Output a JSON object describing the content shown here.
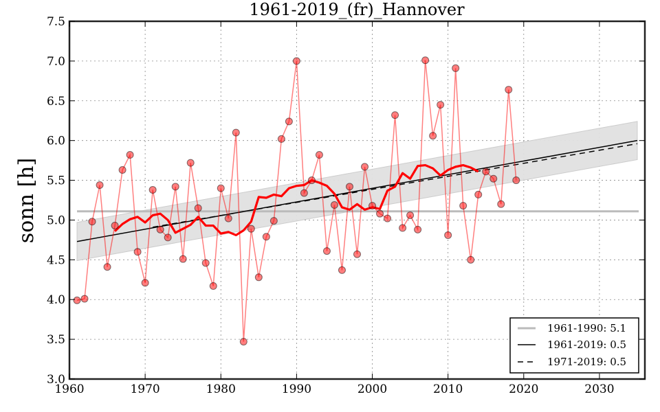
{
  "chart_data": {
    "type": "line",
    "title": "1961-2019_(fr)_Hannover",
    "xlabel": "",
    "ylabel": "sonn [h]",
    "xlim": [
      1960,
      2036
    ],
    "ylim": [
      3.0,
      7.5
    ],
    "grid": true,
    "x_ticks": [
      "1960",
      "1970",
      "1980",
      "1990",
      "2000",
      "2010",
      "2020",
      "2030"
    ],
    "y_ticks": [
      "3.0",
      "3.5",
      "4.0",
      "4.5",
      "5.0",
      "5.5",
      "6.0",
      "6.5",
      "7.0",
      "7.5"
    ],
    "series": [
      {
        "name": "annual values",
        "kind": "points-line",
        "color": "#ff0000",
        "x": [
          1961,
          1962,
          1963,
          1964,
          1965,
          1966,
          1967,
          1968,
          1969,
          1970,
          1971,
          1972,
          1973,
          1974,
          1975,
          1976,
          1977,
          1978,
          1979,
          1980,
          1981,
          1982,
          1983,
          1984,
          1985,
          1986,
          1987,
          1988,
          1989,
          1990,
          1991,
          1992,
          1993,
          1994,
          1995,
          1996,
          1997,
          1998,
          1999,
          2000,
          2001,
          2002,
          2003,
          2004,
          2005,
          2006,
          2007,
          2008,
          2009,
          2010,
          2011,
          2012,
          2013,
          2014,
          2015,
          2016,
          2017,
          2018,
          2019
        ],
        "y": [
          3.99,
          4.01,
          4.98,
          5.44,
          4.41,
          4.93,
          5.63,
          5.82,
          4.6,
          4.21,
          5.38,
          4.88,
          4.78,
          5.42,
          4.51,
          5.72,
          5.15,
          4.46,
          4.17,
          5.4,
          5.02,
          6.1,
          3.47,
          4.89,
          4.28,
          4.79,
          4.99,
          6.02,
          6.24,
          7.0,
          5.34,
          5.5,
          5.82,
          4.61,
          5.19,
          4.37,
          5.42,
          4.57,
          5.67,
          5.18,
          5.08,
          5.02,
          6.32,
          4.9,
          5.06,
          4.88,
          7.01,
          6.06,
          6.45,
          4.81,
          6.91,
          5.18,
          4.5,
          5.32,
          5.61,
          5.52,
          5.2,
          6.64,
          5.5
        ]
      },
      {
        "name": "moving average",
        "kind": "line",
        "color": "#ff0000",
        "x": [
          1966,
          1967,
          1968,
          1969,
          1970,
          1971,
          1972,
          1973,
          1974,
          1975,
          1976,
          1977,
          1978,
          1979,
          1980,
          1981,
          1982,
          1983,
          1984,
          1985,
          1986,
          1987,
          1988,
          1989,
          1990,
          1991,
          1992,
          1993,
          1994,
          1995,
          1996,
          1997,
          1998,
          1999,
          2000,
          2001,
          2002,
          2003,
          2004,
          2005,
          2006,
          2007,
          2008,
          2009,
          2010,
          2011,
          2012,
          2013,
          2014
        ],
        "y": [
          4.86,
          4.95,
          5.01,
          5.04,
          4.97,
          5.06,
          5.08,
          5.0,
          4.84,
          4.89,
          4.94,
          5.04,
          4.93,
          4.93,
          4.83,
          4.85,
          4.81,
          4.87,
          4.98,
          5.29,
          5.28,
          5.32,
          5.3,
          5.4,
          5.43,
          5.44,
          5.5,
          5.47,
          5.43,
          5.33,
          5.16,
          5.13,
          5.2,
          5.13,
          5.16,
          5.14,
          5.37,
          5.42,
          5.59,
          5.52,
          5.68,
          5.69,
          5.65,
          5.56,
          5.63,
          5.67,
          5.69,
          5.66,
          5.61
        ]
      }
    ],
    "reference_line": {
      "label": "1961-1990: 5.1",
      "value": 5.11,
      "x_range": [
        1961,
        2035
      ],
      "color": "#bbbbbb"
    },
    "trend_lines": [
      {
        "label": "1961-2019: 0.5",
        "style": "solid",
        "x": [
          1961,
          2035
        ],
        "y": [
          4.73,
          6.0
        ],
        "color": "#000000"
      },
      {
        "label": "1971-2019: 0.5",
        "style": "dashed",
        "x": [
          1971,
          2035
        ],
        "y": [
          4.91,
          5.96
        ],
        "color": "#000000"
      }
    ],
    "confidence_band": {
      "x": [
        1961,
        2035
      ],
      "upper": [
        4.97,
        6.24
      ],
      "lower": [
        4.49,
        5.76
      ],
      "color": "#e0e0e0"
    },
    "legend": {
      "position": "bottom-right",
      "entries": [
        "1961-1990: 5.1",
        "1961-2019: 0.5",
        "1971-2019: 0.5"
      ]
    }
  }
}
